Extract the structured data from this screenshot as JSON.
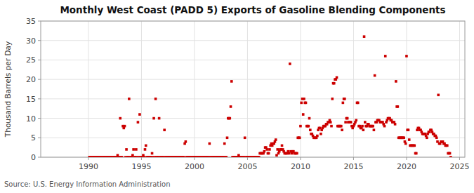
{
  "chart_data": {
    "type": "scatter",
    "title": "Monthly West Coast (PADD 5) Exports of Gasoline Blending Components",
    "ylabel": "Thousand Barrels per Day",
    "source": "Source: U.S. Energy Information Administration",
    "color": "#cc0000",
    "marker": "square",
    "grid": true,
    "xlim": [
      1985.5,
      2025.5
    ],
    "ylim": [
      0,
      35
    ],
    "xticks": [
      1990,
      1995,
      2000,
      2005,
      2010,
      2015,
      2020,
      2025
    ],
    "yticks": [
      0,
      5,
      10,
      15,
      20,
      25,
      30,
      35
    ],
    "x": [
      1990.083,
      1990.167,
      1990.25,
      1990.333,
      1990.417,
      1990.5,
      1990.583,
      1990.667,
      1990.75,
      1990.833,
      1990.917,
      1991.0,
      1991.083,
      1991.167,
      1991.25,
      1991.333,
      1991.417,
      1991.5,
      1991.583,
      1991.667,
      1991.75,
      1991.833,
      1991.917,
      1992.0,
      1992.083,
      1992.167,
      1992.25,
      1992.333,
      1992.417,
      1992.5,
      1992.583,
      1992.667,
      1992.75,
      1992.833,
      1992.917,
      1993.0,
      1993.083,
      1993.167,
      1993.25,
      1993.333,
      1993.417,
      1993.5,
      1993.583,
      1993.667,
      1993.75,
      1993.833,
      1993.917,
      1994.0,
      1994.083,
      1994.167,
      1994.25,
      1994.333,
      1994.417,
      1994.5,
      1994.583,
      1994.667,
      1994.75,
      1994.833,
      1994.917,
      1995.0,
      1995.083,
      1995.167,
      1995.25,
      1995.333,
      1995.417,
      1995.5,
      1995.583,
      1995.667,
      1995.75,
      1995.833,
      1995.917,
      1996.0,
      1996.083,
      1996.167,
      1996.25,
      1996.333,
      1996.417,
      1996.5,
      1996.583,
      1996.667,
      1996.75,
      1996.833,
      1996.917,
      1997.0,
      1997.083,
      1997.167,
      1997.25,
      1997.333,
      1997.417,
      1997.5,
      1997.583,
      1997.667,
      1997.75,
      1997.833,
      1997.917,
      1998.0,
      1998.083,
      1998.167,
      1998.25,
      1998.333,
      1998.417,
      1998.5,
      1998.583,
      1998.667,
      1998.75,
      1998.833,
      1998.917,
      1999.0,
      1999.083,
      1999.167,
      1999.25,
      1999.333,
      1999.417,
      1999.5,
      1999.583,
      1999.667,
      1999.75,
      1999.833,
      1999.917,
      2000.0,
      2000.083,
      2000.167,
      2000.25,
      2000.333,
      2000.417,
      2000.5,
      2000.583,
      2000.667,
      2000.75,
      2000.833,
      2000.917,
      2001.0,
      2001.083,
      2001.167,
      2001.25,
      2001.333,
      2001.417,
      2001.5,
      2001.583,
      2001.667,
      2001.75,
      2001.833,
      2001.917,
      2002.0,
      2002.083,
      2002.167,
      2002.25,
      2002.333,
      2002.417,
      2002.5,
      2002.583,
      2002.667,
      2002.75,
      2002.833,
      2002.917,
      2003.0,
      2003.083,
      2003.167,
      2003.25,
      2003.333,
      2003.417,
      2003.5,
      2003.583,
      2003.667,
      2003.75,
      2003.833,
      2003.917,
      2004.0,
      2004.083,
      2004.167,
      2004.25,
      2004.333,
      2004.417,
      2004.5,
      2004.583,
      2004.667,
      2004.75,
      2004.833,
      2004.917,
      2005.0,
      2005.083,
      2005.167,
      2005.25,
      2005.333,
      2005.417,
      2005.5,
      2005.583,
      2005.667,
      2005.75,
      2005.833,
      2005.917,
      2006.0,
      2006.083,
      2006.167,
      2006.25,
      2006.333,
      2006.417,
      2006.5,
      2006.583,
      2006.667,
      2006.75,
      2006.833,
      2006.917,
      2007.0,
      2007.083,
      2007.167,
      2007.25,
      2007.333,
      2007.417,
      2007.5,
      2007.583,
      2007.667,
      2007.75,
      2007.833,
      2007.917,
      2008.0,
      2008.083,
      2008.167,
      2008.25,
      2008.333,
      2008.417,
      2008.5,
      2008.583,
      2008.667,
      2008.75,
      2008.833,
      2008.917,
      2009.0,
      2009.083,
      2009.167,
      2009.25,
      2009.333,
      2009.417,
      2009.5,
      2009.583,
      2009.667,
      2009.75,
      2009.833,
      2009.917,
      2010.0,
      2010.083,
      2010.167,
      2010.25,
      2010.333,
      2010.417,
      2010.5,
      2010.583,
      2010.667,
      2010.75,
      2010.833,
      2010.917,
      2011.0,
      2011.083,
      2011.167,
      2011.25,
      2011.333,
      2011.417,
      2011.5,
      2011.583,
      2011.667,
      2011.75,
      2011.833,
      2011.917,
      2012.0,
      2012.083,
      2012.167,
      2012.25,
      2012.333,
      2012.417,
      2012.5,
      2012.583,
      2012.667,
      2012.75,
      2012.833,
      2012.917,
      2013.0,
      2013.083,
      2013.167,
      2013.25,
      2013.333,
      2013.417,
      2013.5,
      2013.583,
      2013.667,
      2013.75,
      2013.833,
      2013.917,
      2014.0,
      2014.083,
      2014.167,
      2014.25,
      2014.333,
      2014.417,
      2014.5,
      2014.583,
      2014.667,
      2014.75,
      2014.833,
      2014.917,
      2015.0,
      2015.083,
      2015.167,
      2015.25,
      2015.333,
      2015.417,
      2015.5,
      2015.583,
      2015.667,
      2015.75,
      2015.833,
      2015.917,
      2016.0,
      2016.083,
      2016.167,
      2016.25,
      2016.333,
      2016.417,
      2016.5,
      2016.583,
      2016.667,
      2016.75,
      2016.833,
      2016.917,
      2017.0,
      2017.083,
      2017.167,
      2017.25,
      2017.333,
      2017.417,
      2017.5,
      2017.583,
      2017.667,
      2017.75,
      2017.833,
      2017.917,
      2018.0,
      2018.083,
      2018.167,
      2018.25,
      2018.333,
      2018.417,
      2018.5,
      2018.583,
      2018.667,
      2018.75,
      2018.833,
      2018.917,
      2019.0,
      2019.083,
      2019.167,
      2019.25,
      2019.333,
      2019.417,
      2019.5,
      2019.583,
      2019.667,
      2019.75,
      2019.833,
      2019.917,
      2020.0,
      2020.083,
      2020.167,
      2020.25,
      2020.333,
      2020.417,
      2020.5,
      2020.583,
      2020.667,
      2020.75,
      2020.833,
      2020.917,
      2021.0,
      2021.083,
      2021.167,
      2021.25,
      2021.333,
      2021.417,
      2021.5,
      2021.583,
      2021.667,
      2021.75,
      2021.833,
      2021.917,
      2022.0,
      2022.083,
      2022.167,
      2022.25,
      2022.333,
      2022.417,
      2022.5,
      2022.583,
      2022.667,
      2022.75,
      2022.833,
      2022.917,
      2023.0,
      2023.083,
      2023.167,
      2023.25,
      2023.333,
      2023.417,
      2023.5,
      2023.583,
      2023.667,
      2023.75,
      2023.833,
      2023.917,
      2024.0,
      2024.083,
      2024.167
    ],
    "values": [
      0,
      0,
      0,
      0,
      0,
      0,
      0,
      0,
      0,
      0,
      0,
      0,
      0,
      0,
      0,
      0,
      0,
      0,
      0,
      0,
      0,
      0,
      0,
      0,
      0,
      0,
      0,
      0,
      0,
      0,
      0,
      0,
      0.5,
      0,
      0,
      10,
      0,
      0,
      8,
      7.5,
      8,
      0,
      2,
      0,
      0,
      15,
      0,
      0,
      0,
      0.5,
      2,
      0,
      0,
      2,
      0,
      9,
      0,
      11,
      0,
      0,
      0,
      0.5,
      0,
      2,
      3,
      0,
      0,
      0,
      0,
      0,
      0,
      1,
      0,
      10,
      0,
      15,
      0,
      0,
      0,
      10,
      0,
      0,
      0,
      0,
      0,
      7,
      0,
      0,
      0,
      0,
      0,
      0,
      0,
      0,
      0,
      0,
      0,
      0,
      0,
      0,
      0,
      0,
      0,
      0,
      0,
      0,
      0,
      0,
      3.5,
      4,
      0,
      0,
      0,
      0,
      0,
      0,
      0,
      0,
      0,
      0,
      0,
      0,
      0,
      0,
      0,
      0,
      0,
      0,
      0,
      0,
      0,
      0,
      0,
      0,
      0,
      0,
      3.5,
      0,
      0,
      0,
      0,
      0,
      0,
      0,
      0,
      0,
      0,
      0,
      0,
      0,
      0,
      0,
      0,
      3.5,
      0,
      0,
      5,
      10,
      10,
      10,
      13,
      19.5,
      0,
      0,
      0,
      0,
      0,
      0,
      0,
      0.5,
      0,
      0,
      0,
      0,
      0,
      0,
      5,
      0,
      0,
      0,
      0,
      0,
      0,
      0,
      0,
      0,
      0,
      0,
      0,
      0,
      0,
      0,
      0,
      1,
      1,
      1,
      1,
      1,
      1.5,
      2.5,
      2.5,
      2,
      1,
      1,
      2,
      3,
      3.5,
      3,
      3.5,
      3.5,
      4,
      4.5,
      0.5,
      2,
      1,
      1.5,
      2,
      2,
      3,
      2,
      1.5,
      1,
      1,
      1,
      1,
      1.5,
      1,
      24,
      1.5,
      1,
      1.5,
      1.5,
      1,
      1,
      1,
      1,
      5,
      5,
      5,
      8,
      14,
      15,
      11,
      15,
      14,
      14,
      8,
      8,
      8,
      10,
      7,
      6,
      6,
      5.5,
      5,
      5,
      5,
      5,
      5.5,
      7,
      7.5,
      7.5,
      6,
      7,
      7.5,
      8,
      8,
      8,
      8.5,
      8.5,
      9,
      9,
      9.5,
      9,
      8,
      15,
      19,
      19,
      20,
      20,
      20.5,
      8,
      8,
      8,
      8,
      8,
      7,
      14,
      15,
      15,
      9,
      10,
      10,
      9,
      9,
      9,
      9,
      8,
      7.5,
      8,
      8.5,
      9,
      9.5,
      14,
      14,
      8,
      8,
      7.5,
      7.5,
      8,
      7,
      31,
      9,
      8,
      8,
      8.5,
      8.5,
      8,
      8,
      8,
      8,
      8,
      7,
      21,
      9,
      9,
      9.5,
      9.5,
      9.5,
      9,
      9,
      9,
      9,
      8.5,
      8,
      26,
      9,
      9.5,
      10,
      10,
      10,
      9.5,
      9.5,
      9,
      9,
      9,
      8.5,
      19.5,
      13,
      13,
      5,
      5,
      5,
      5,
      5,
      5,
      5,
      4,
      3.5,
      26,
      7,
      7,
      4.5,
      3,
      3,
      3,
      3,
      3,
      3,
      1,
      1,
      7,
      7.5,
      7.5,
      7,
      7,
      6.5,
      6,
      6,
      6,
      6,
      5.5,
      5,
      6,
      6.5,
      6.5,
      7,
      7,
      6.5,
      6,
      6,
      5.5,
      5.5,
      5,
      4,
      16,
      3.5,
      3.5,
      4,
      4,
      4,
      3.5,
      3.5,
      3,
      3,
      3,
      1,
      1,
      1,
      0
    ]
  }
}
